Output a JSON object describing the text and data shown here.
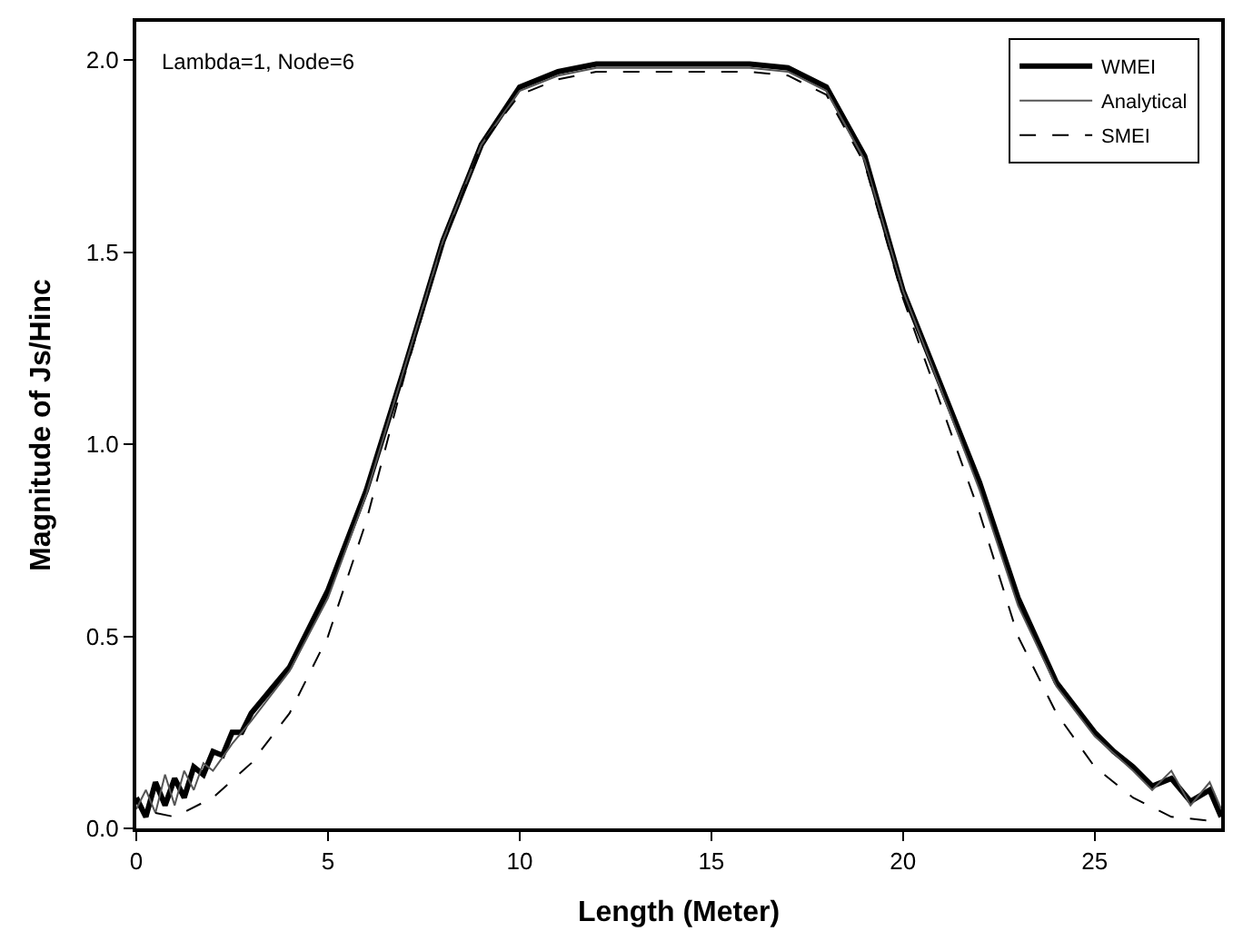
{
  "chart_data": {
    "type": "line",
    "xlabel": "Length (Meter)",
    "ylabel": "Magnitude of Js/Hinc",
    "annotations": [
      "Lambda=1, Node=6"
    ],
    "xlim": [
      0,
      28.3
    ],
    "xticks": [
      0,
      5,
      10,
      15,
      20,
      25
    ],
    "ylim": [
      0,
      2.1
    ],
    "yticks": [
      "0.0",
      0.5,
      "1.0",
      1.5,
      "2.0"
    ],
    "legend": "top right",
    "marker": "none",
    "series": [
      {
        "name": "WMEI",
        "color": "#000000",
        "line_style": "solid",
        "x": [
          0,
          0.25,
          0.5,
          0.75,
          1.0,
          1.25,
          1.5,
          1.75,
          2.0,
          2.25,
          2.5,
          2.75,
          3.0,
          3.5,
          4,
          5,
          6,
          7,
          8,
          9,
          10,
          11,
          12,
          13,
          14,
          15,
          16,
          17,
          18,
          19,
          20,
          21,
          22,
          23,
          24,
          25,
          25.5,
          26,
          26.5,
          27,
          27.5,
          28,
          28.3
        ],
        "values": [
          0.08,
          0.03,
          0.12,
          0.06,
          0.13,
          0.08,
          0.16,
          0.14,
          0.2,
          0.19,
          0.25,
          0.25,
          0.3,
          0.36,
          0.42,
          0.62,
          0.88,
          1.2,
          1.53,
          1.78,
          1.93,
          1.97,
          1.99,
          1.99,
          1.99,
          1.99,
          1.99,
          1.98,
          1.93,
          1.75,
          1.4,
          1.15,
          0.9,
          0.6,
          0.38,
          0.25,
          0.2,
          0.16,
          0.11,
          0.13,
          0.07,
          0.1,
          0.03
        ]
      },
      {
        "name": "Analytical",
        "color": "#555555",
        "line_style": "solid",
        "x": [
          0,
          0.25,
          0.5,
          0.75,
          1.0,
          1.25,
          1.5,
          1.75,
          2.0,
          2.5,
          3.0,
          4,
          5,
          6,
          7,
          8,
          9,
          10,
          11,
          12,
          14,
          16,
          17,
          18,
          19,
          20,
          21,
          22,
          23,
          24,
          25,
          26,
          26.5,
          27,
          27.5,
          28,
          28.3
        ],
        "values": [
          0.05,
          0.1,
          0.04,
          0.14,
          0.06,
          0.15,
          0.1,
          0.17,
          0.15,
          0.22,
          0.28,
          0.41,
          0.6,
          0.87,
          1.2,
          1.53,
          1.78,
          1.92,
          1.96,
          1.98,
          1.98,
          1.98,
          1.97,
          1.92,
          1.74,
          1.4,
          1.14,
          0.88,
          0.58,
          0.37,
          0.24,
          0.15,
          0.1,
          0.15,
          0.06,
          0.12,
          0.05
        ]
      },
      {
        "name": "SMEI",
        "color": "#000000",
        "line_style": "dashed",
        "x": [
          0.5,
          1,
          2,
          3,
          4,
          5,
          6,
          7,
          8,
          9,
          10,
          11,
          12,
          14,
          16,
          17,
          18,
          19,
          20,
          21,
          22,
          23,
          24,
          25,
          26,
          27,
          28
        ],
        "values": [
          0.04,
          0.03,
          0.08,
          0.17,
          0.3,
          0.5,
          0.8,
          1.18,
          1.52,
          1.78,
          1.91,
          1.95,
          1.97,
          1.97,
          1.97,
          1.96,
          1.91,
          1.73,
          1.38,
          1.1,
          0.82,
          0.5,
          0.3,
          0.16,
          0.08,
          0.03,
          0.02
        ]
      }
    ]
  }
}
